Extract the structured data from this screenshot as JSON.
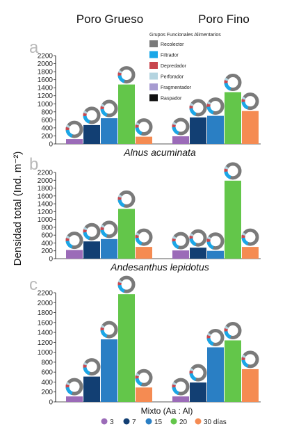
{
  "column_titles": [
    "Poro Grueso",
    "Poro Fino"
  ],
  "y_axis_label": "Densidad total (Ind. m⁻²)",
  "x_axis_label": "Mixto (Aa : Al)",
  "functional_groups_legend": {
    "title": "Grupos Funcionales Alimentarios",
    "items": [
      {
        "label": "Recolector",
        "color": "#7a7a7a"
      },
      {
        "label": "Filtrador",
        "color": "#1aa7e8"
      },
      {
        "label": "Depredador",
        "color": "#c8464e"
      },
      {
        "label": "Perforador",
        "color": "#b4d4e0"
      },
      {
        "label": "Fragmentador",
        "color": "#a79bd1"
      },
      {
        "label": "Raspador",
        "color": "#111111"
      }
    ]
  },
  "days_legend": {
    "items": [
      {
        "label": "3",
        "color": "#9b6bb8"
      },
      {
        "label": "7",
        "color": "#123f73"
      },
      {
        "label": "15",
        "color": "#2a7fc4"
      },
      {
        "label": "20",
        "color": "#63c64a"
      },
      {
        "label": "30 días",
        "color": "#f58b52"
      }
    ]
  },
  "chart_data": [
    {
      "type": "bar",
      "panel": "a",
      "species": "Alnus acuminata",
      "ylim": [
        0,
        2200
      ],
      "yticks": [
        0,
        200,
        400,
        600,
        800,
        1000,
        1200,
        1400,
        1600,
        1800,
        2000,
        2200
      ],
      "groups": [
        "Poro Grueso",
        "Poro Fino"
      ],
      "categories": [
        "3",
        "7",
        "15",
        "20",
        "30 días"
      ],
      "series": [
        {
          "group": "Poro Grueso",
          "values": [
            120,
            470,
            640,
            1480,
            180
          ]
        },
        {
          "group": "Poro Fino",
          "values": [
            190,
            660,
            700,
            1290,
            820
          ]
        }
      ]
    },
    {
      "type": "bar",
      "panel": "b",
      "species": "Andesanthus lepidotus",
      "ylim": [
        0,
        2200
      ],
      "yticks": [
        0,
        200,
        400,
        600,
        800,
        1000,
        1200,
        1400,
        1600,
        1800,
        2000,
        2200
      ],
      "groups": [
        "Poro Grueso",
        "Poro Fino"
      ],
      "categories": [
        "3",
        "7",
        "15",
        "20",
        "30 días"
      ],
      "series": [
        {
          "group": "Poro Grueso",
          "values": [
            220,
            440,
            500,
            1270,
            300
          ]
        },
        {
          "group": "Poro Fino",
          "values": [
            210,
            280,
            200,
            1990,
            300
          ]
        }
      ]
    },
    {
      "type": "bar",
      "panel": "c",
      "species": "",
      "ylim": [
        0,
        2200
      ],
      "yticks": [
        0,
        200,
        400,
        600,
        800,
        1000,
        1200,
        1400,
        1600,
        1800,
        2000,
        2200
      ],
      "groups": [
        "Poro Grueso",
        "Poro Fino"
      ],
      "categories": [
        "3",
        "7",
        "15",
        "20",
        "30 días"
      ],
      "series": [
        {
          "group": "Poro Grueso",
          "values": [
            110,
            510,
            1260,
            2170,
            290
          ]
        },
        {
          "group": "Poro Fino",
          "values": [
            110,
            390,
            1100,
            1240,
            660
          ]
        }
      ]
    }
  ]
}
